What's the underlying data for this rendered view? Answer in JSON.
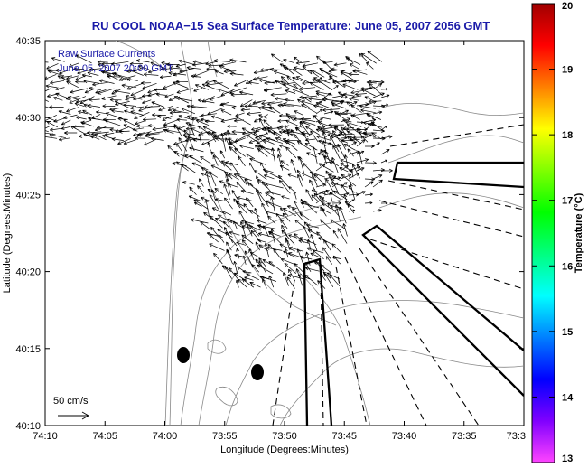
{
  "title": "RU COOL   NOAA−15  Sea Surface Temperature:  June 05, 2007 2056 GMT",
  "inset": {
    "line1": "Raw Surface Currents",
    "line2": "June 05, 2007 20:00 GMT"
  },
  "scale_label": "50 cm/s",
  "x_axis": {
    "label": "Longitude (Degrees:Minutes)",
    "ticks": [
      "74:10",
      "74:05",
      "74:00",
      "73:55",
      "73:50",
      "73:45",
      "73:40",
      "73:35",
      "73:3"
    ]
  },
  "y_axis": {
    "label": "Latitude (Degrees:Minutes)",
    "ticks": [
      "40:35",
      "40:30",
      "40:25",
      "40:20",
      "40:15",
      "40:10"
    ]
  },
  "colorbar": {
    "label": "Temperature (°C)",
    "ticks": [
      "20",
      "19",
      "18",
      "17",
      "16",
      "15",
      "14",
      "13"
    ],
    "range": [
      13,
      20
    ],
    "colors": [
      "#ff44ff",
      "#8000ff",
      "#0000ff",
      "#0080ff",
      "#00ffff",
      "#00ff80",
      "#00ff00",
      "#80ff00",
      "#ffff00",
      "#ff8000",
      "#ff0000",
      "#a00000"
    ]
  },
  "colors": {
    "title": "#1a1aa8",
    "inset_text": "#1a1aa8",
    "contours": "#888888"
  }
}
